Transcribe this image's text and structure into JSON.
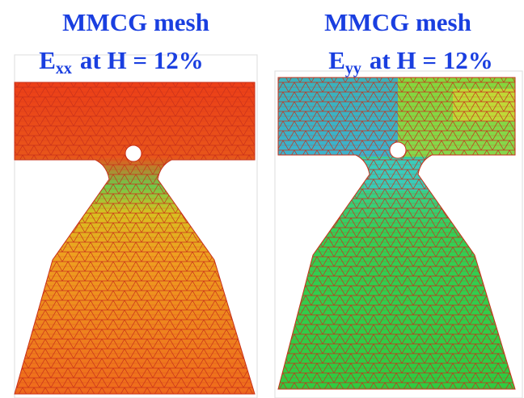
{
  "panels": [
    {
      "title": "MMCG mesh",
      "label": {
        "symbol": "E",
        "subscript": "xx",
        "condition": "at H = 12%"
      }
    },
    {
      "title": "MMCG mesh",
      "label": {
        "symbol": "E",
        "subscript": "yy",
        "condition": "at H = 12%"
      }
    }
  ]
}
